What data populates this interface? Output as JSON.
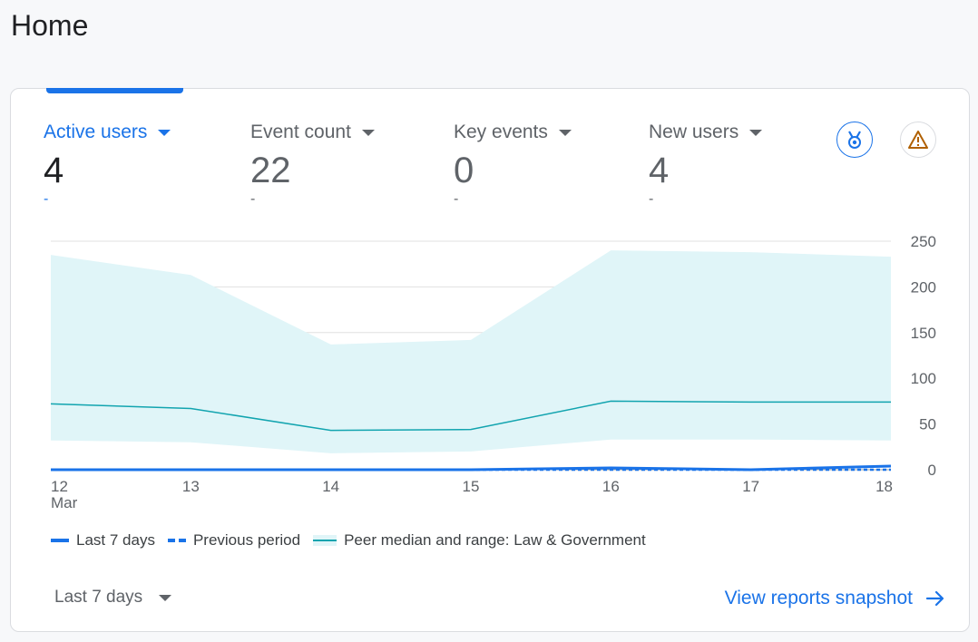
{
  "page": {
    "title": "Home"
  },
  "metrics": [
    {
      "label": "Active users",
      "value": "4",
      "change": "-",
      "active": true
    },
    {
      "label": "Event count",
      "value": "22",
      "change": "-",
      "active": false
    },
    {
      "label": "Key events",
      "value": "0",
      "change": "-",
      "active": false
    },
    {
      "label": "New users",
      "value": "4",
      "change": "-",
      "active": false
    }
  ],
  "icons": {
    "medal": "medal-icon",
    "warning": "warning-icon"
  },
  "legend": {
    "last7": "Last 7 days",
    "previous": "Previous period",
    "peer": "Peer median and range: Law & Government"
  },
  "footer": {
    "range_label": "Last 7 days",
    "snapshot_link": "View reports snapshot"
  },
  "colors": {
    "accent": "#1a73e8",
    "peer_line": "#12a4af",
    "peer_band": "#e0f5f8",
    "warning": "#b06000"
  },
  "chart_data": {
    "type": "line",
    "categories": [
      "12",
      "13",
      "14",
      "15",
      "16",
      "17",
      "18"
    ],
    "x_month_label": "Mar",
    "y_ticks": [
      "250",
      "200",
      "150",
      "100",
      "50",
      "0"
    ],
    "ylim": [
      0,
      250
    ],
    "y_axis_position": "right",
    "grid": true,
    "legend_position": "bottom-left",
    "series": [
      {
        "name": "Last 7 days",
        "style": "solid",
        "values": [
          0,
          0,
          0,
          0,
          2,
          0,
          4
        ]
      },
      {
        "name": "Previous period",
        "style": "dashed",
        "values": [
          0,
          0,
          0,
          0,
          0,
          0,
          0
        ]
      },
      {
        "name": "Peer median and range: Law & Government",
        "style": "median",
        "values": [
          72,
          67,
          43,
          44,
          75,
          74,
          74
        ]
      }
    ],
    "peer_range": {
      "upper": [
        235,
        213,
        137,
        142,
        240,
        238,
        233
      ],
      "lower": [
        32,
        30,
        18,
        20,
        33,
        33,
        32
      ]
    }
  }
}
